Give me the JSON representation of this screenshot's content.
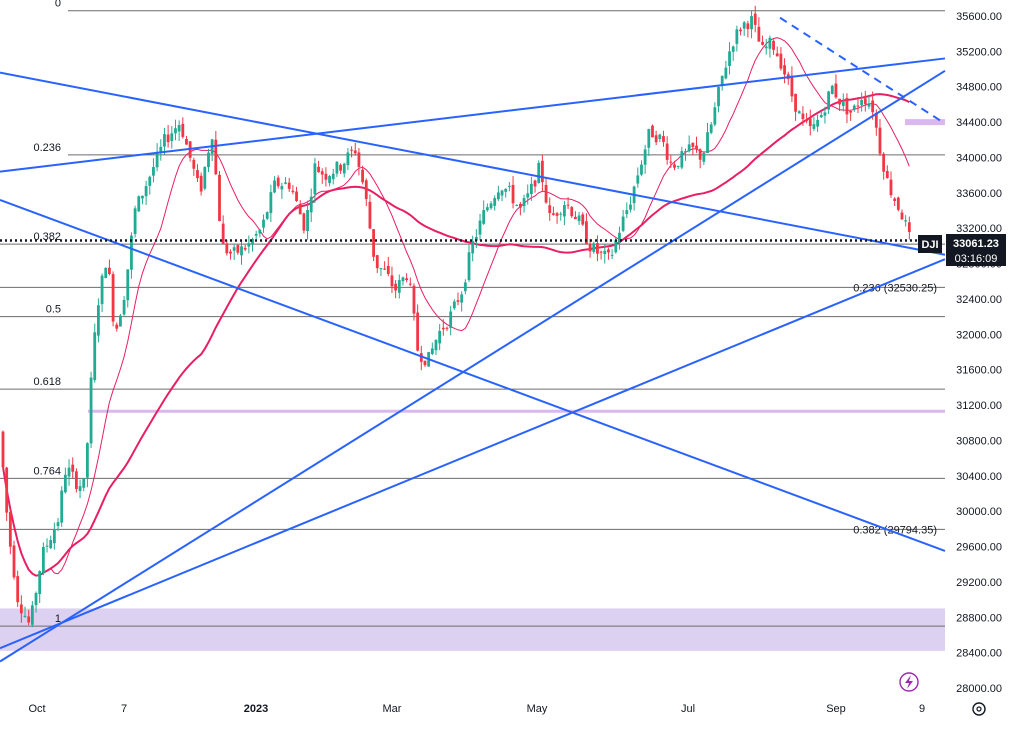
{
  "chart_data": {
    "type": "candlestick",
    "symbol": "DJI",
    "last_price": "33061.23",
    "countdown": "03:16:09",
    "ylim": [
      27900,
      35900
    ],
    "y_ticks": [
      "35600.00",
      "35200.00",
      "34800.00",
      "34400.00",
      "34000.00",
      "33600.00",
      "33200.00",
      "32800.00",
      "32400.00",
      "32000.00",
      "31600.00",
      "31200.00",
      "30800.00",
      "30400.00",
      "30000.00",
      "29600.00",
      "29200.00",
      "28800.00",
      "28400.00",
      "28000.00"
    ],
    "x_ticks": [
      "Oct",
      "7",
      "2023",
      "Mar",
      "May",
      "Jul",
      "Sep",
      "9"
    ],
    "fib_levels": [
      {
        "label": "0",
        "price": 35660,
        "side": "left"
      },
      {
        "label": "0.236",
        "price": 34030,
        "side": "left"
      },
      {
        "label": "0.382",
        "price": 33020,
        "side": "left"
      },
      {
        "label": "0.5",
        "price": 32200,
        "side": "left"
      },
      {
        "label": "0.618",
        "price": 31380,
        "side": "left"
      },
      {
        "label": "0.764",
        "price": 30370,
        "side": "left"
      },
      {
        "label": "1",
        "price": 28700,
        "side": "left"
      },
      {
        "label": "0.236 (32530.25)",
        "price": 32530.25,
        "side": "right"
      },
      {
        "label": "0.382 (29794.35)",
        "price": 29794.35,
        "side": "right"
      }
    ],
    "zones": [
      {
        "name": "support-zone",
        "from": 28420,
        "to": 28900,
        "color": "#d9ccf0"
      }
    ],
    "horizontal_lines": [
      {
        "name": "pink-line-low",
        "price": 31130,
        "color": "#dab8ef"
      },
      {
        "name": "pink-line-high",
        "price": 34400,
        "color": "#dab8ef"
      }
    ],
    "last_price_line": 33061.23,
    "colors": {
      "up": "#22ab94",
      "down": "#f23645",
      "trend": "#2962ff",
      "ma_long": "#e91e63",
      "ma_short": "#e91e63"
    },
    "candle_count": 248
  },
  "ui": {
    "replay_icon": "lightning-icon",
    "settings_icon": "gear-icon"
  }
}
